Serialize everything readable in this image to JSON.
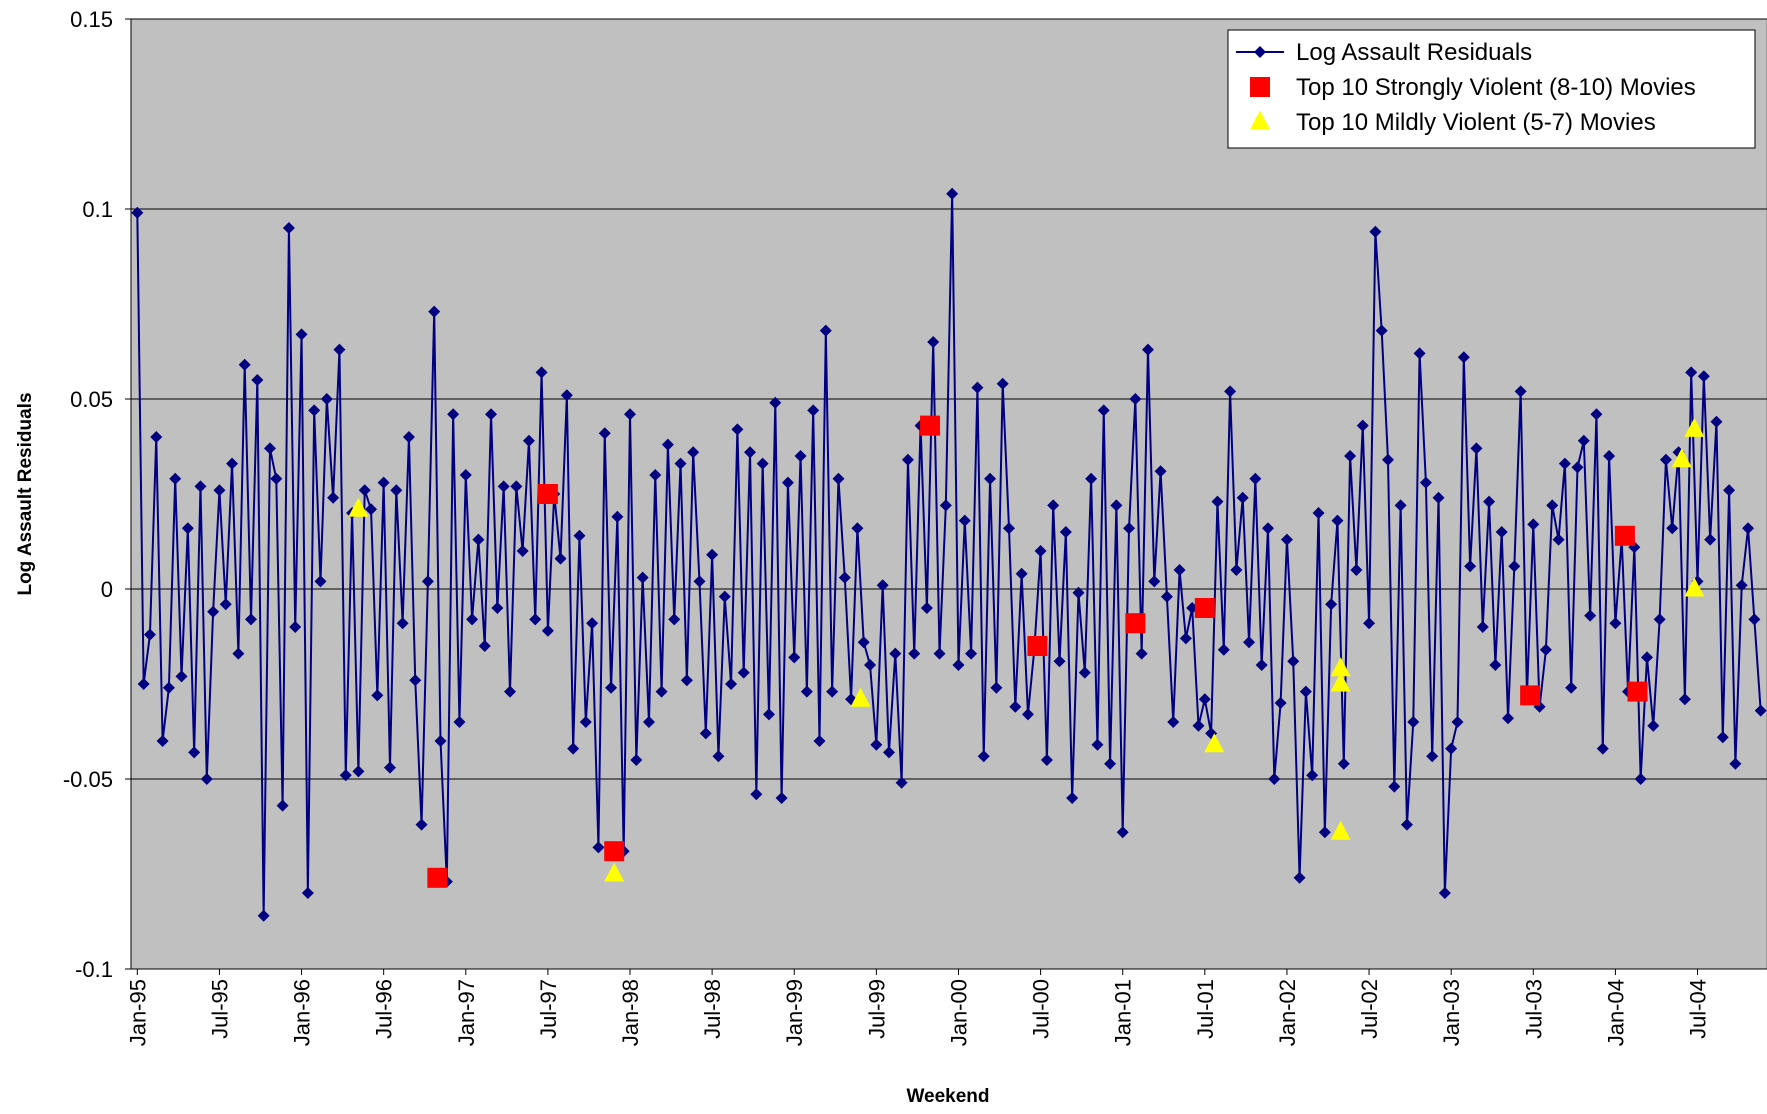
{
  "chart_data": {
    "type": "line",
    "x_label": "Weekend",
    "y_label": "Log Assault Residuals",
    "xlim": [
      0,
      518
    ],
    "ylim": [
      -0.1,
      0.15
    ],
    "yticks": [
      -0.1,
      -0.05,
      0,
      0.05,
      0.1,
      0.15
    ],
    "xticks": [
      {
        "value": 2,
        "label": "Jan-95"
      },
      {
        "value": 28,
        "label": "Jul-95"
      },
      {
        "value": 54,
        "label": "Jan-96"
      },
      {
        "value": 80,
        "label": "Jul-96"
      },
      {
        "value": 106,
        "label": "Jan-97"
      },
      {
        "value": 132,
        "label": "Jul-97"
      },
      {
        "value": 158,
        "label": "Jan-98"
      },
      {
        "value": 184,
        "label": "Jul-98"
      },
      {
        "value": 210,
        "label": "Jan-99"
      },
      {
        "value": 236,
        "label": "Jul-99"
      },
      {
        "value": 262,
        "label": "Jan-00"
      },
      {
        "value": 288,
        "label": "Jul-00"
      },
      {
        "value": 314,
        "label": "Jan-01"
      },
      {
        "value": 340,
        "label": "Jul-01"
      },
      {
        "value": 366,
        "label": "Jan-02"
      },
      {
        "value": 392,
        "label": "Jul-02"
      },
      {
        "value": 418,
        "label": "Jan-03"
      },
      {
        "value": 444,
        "label": "Jul-03"
      },
      {
        "value": 470,
        "label": "Jan-04"
      },
      {
        "value": 496,
        "label": "Jul-04"
      }
    ],
    "grid": true,
    "background": "#c0c0c0",
    "legend": "top-right",
    "series": [
      {
        "name": "Log Assault Residuals",
        "color": "#000080",
        "marker": "diamond",
        "line": true,
        "x": [
          2,
          4,
          6,
          8,
          10,
          12,
          14,
          16,
          18,
          20,
          22,
          24,
          26,
          28,
          30,
          32,
          34,
          36,
          38,
          40,
          42,
          44,
          46,
          48,
          50,
          52,
          54,
          56,
          58,
          60,
          62,
          64,
          66,
          68,
          70,
          72,
          74,
          76,
          78,
          80,
          82,
          84,
          86,
          88,
          90,
          92,
          94,
          96,
          98,
          100,
          102,
          104,
          106,
          108,
          110,
          112,
          114,
          116,
          118,
          120,
          122,
          124,
          126,
          128,
          130,
          132,
          134,
          136,
          138,
          140,
          142,
          144,
          146,
          148,
          150,
          152,
          154,
          156,
          158,
          160,
          162,
          164,
          166,
          168,
          170,
          172,
          174,
          176,
          178,
          180,
          182,
          184,
          186,
          188,
          190,
          192,
          194,
          196,
          198,
          200,
          202,
          204,
          206,
          208,
          210,
          212,
          214,
          216,
          218,
          220,
          222,
          224,
          226,
          228,
          230,
          232,
          234,
          236,
          238,
          240,
          242,
          244,
          246,
          248,
          250,
          252,
          254,
          256,
          258,
          260,
          262,
          264,
          266,
          268,
          270,
          272,
          274,
          276,
          278,
          280,
          282,
          284,
          286,
          288,
          290,
          292,
          294,
          296,
          298,
          300,
          302,
          304,
          306,
          308,
          310,
          312,
          314,
          316,
          318,
          320,
          322,
          324,
          326,
          328,
          330,
          332,
          334,
          336,
          338,
          340,
          342,
          344,
          346,
          348,
          350,
          352,
          354,
          356,
          358,
          360,
          362,
          364,
          366,
          368,
          370,
          372,
          374,
          376,
          378,
          380,
          382,
          384,
          386,
          388,
          390,
          392,
          394,
          396,
          398,
          400,
          402,
          404,
          406,
          408,
          410,
          412,
          414,
          416,
          418,
          420,
          422,
          424,
          426,
          428,
          430,
          432,
          434,
          436,
          438,
          440,
          442,
          444,
          446,
          448,
          450,
          452,
          454,
          456,
          458,
          460,
          462,
          464,
          466,
          468,
          470,
          472,
          474,
          476,
          478,
          480,
          482,
          484,
          486,
          488,
          490,
          492,
          494,
          496,
          498,
          500,
          502,
          504,
          506,
          508,
          510,
          512,
          514,
          516
        ],
        "values": [
          0.099,
          -0.025,
          -0.012,
          0.04,
          -0.04,
          -0.026,
          0.029,
          -0.023,
          0.016,
          -0.043,
          0.027,
          -0.05,
          -0.006,
          0.026,
          -0.004,
          0.033,
          -0.017,
          0.059,
          -0.008,
          0.055,
          -0.086,
          0.037,
          0.029,
          -0.057,
          0.095,
          -0.01,
          0.067,
          -0.08,
          0.047,
          0.002,
          0.05,
          0.024,
          0.063,
          -0.049,
          0.02,
          -0.048,
          0.026,
          0.021,
          -0.028,
          0.028,
          -0.047,
          0.026,
          -0.009,
          0.04,
          -0.024,
          -0.062,
          0.002,
          0.073,
          -0.04,
          -0.077,
          0.046,
          -0.035,
          0.03,
          -0.008,
          0.013,
          -0.015,
          0.046,
          -0.005,
          0.027,
          -0.027,
          0.027,
          0.01,
          0.039,
          -0.008,
          0.057,
          -0.011,
          0.025,
          0.008,
          0.051,
          -0.042,
          0.014,
          -0.035,
          -0.009,
          -0.068,
          0.041,
          -0.026,
          0.019,
          -0.069,
          0.046,
          -0.045,
          0.003,
          -0.035,
          0.03,
          -0.027,
          0.038,
          -0.008,
          0.033,
          -0.024,
          0.036,
          0.002,
          -0.038,
          0.009,
          -0.044,
          -0.002,
          -0.025,
          0.042,
          -0.022,
          0.036,
          -0.054,
          0.033,
          -0.033,
          0.049,
          -0.055,
          0.028,
          -0.018,
          0.035,
          -0.027,
          0.047,
          -0.04,
          0.068,
          -0.027,
          0.029,
          0.003,
          -0.029,
          0.016,
          -0.014,
          -0.02,
          -0.041,
          0.001,
          -0.043,
          -0.017,
          -0.051,
          0.034,
          -0.017,
          0.043,
          -0.005,
          0.065,
          -0.017,
          0.022,
          0.104,
          -0.02,
          0.018,
          -0.017,
          0.053,
          -0.044,
          0.029,
          -0.026,
          0.054,
          0.016,
          -0.031,
          0.004,
          -0.033,
          -0.016,
          0.01,
          -0.045,
          0.022,
          -0.019,
          0.015,
          -0.055,
          -0.001,
          -0.022,
          0.029,
          -0.041,
          0.047,
          -0.046,
          0.022,
          -0.064,
          0.016,
          0.05,
          -0.017,
          0.063,
          0.002,
          0.031,
          -0.002,
          -0.035,
          0.005,
          -0.013,
          -0.005,
          -0.036,
          -0.029,
          -0.038,
          0.023,
          -0.016,
          0.052,
          0.005,
          0.024,
          -0.014,
          0.029,
          -0.02,
          0.016,
          -0.05,
          -0.03,
          0.013,
          -0.019,
          -0.076,
          -0.027,
          -0.049,
          0.02,
          -0.064,
          -0.004,
          0.018,
          -0.046,
          0.035,
          0.005,
          0.043,
          -0.009,
          0.094,
          0.068,
          0.034,
          -0.052,
          0.022,
          -0.062,
          -0.035,
          0.062,
          0.028,
          -0.044,
          0.024,
          -0.08,
          -0.042,
          -0.035,
          0.061,
          0.006,
          0.037,
          -0.01,
          0.023,
          -0.02,
          0.015,
          -0.034,
          0.006,
          0.052,
          -0.028,
          0.017,
          -0.031,
          -0.016,
          0.022,
          0.013,
          0.033,
          -0.026,
          0.032,
          0.039,
          -0.007,
          0.046,
          -0.042,
          0.035,
          -0.009,
          0.013,
          -0.027,
          0.011,
          -0.05,
          -0.018,
          -0.036,
          -0.008,
          0.034,
          0.016,
          0.036,
          -0.029,
          0.057,
          0.002,
          0.056,
          0.013,
          0.044,
          -0.039,
          0.026,
          -0.046,
          0.001,
          0.016,
          -0.008,
          -0.032
        ]
      },
      {
        "name": "Top 10 Strongly Violent (8-10) Movies",
        "color": "#ff0000",
        "marker": "square",
        "line": false,
        "x": [
          97,
          132,
          153,
          253,
          287,
          318,
          340,
          443,
          473,
          477
        ],
        "values": [
          -0.076,
          0.025,
          -0.069,
          0.043,
          -0.015,
          -0.009,
          -0.005,
          -0.028,
          0.014,
          -0.027
        ]
      },
      {
        "name": "Top 10 Mildly Violent (5-7) Movies",
        "color": "#ffff00",
        "marker": "triangle",
        "line": false,
        "x": [
          72,
          153,
          231,
          343,
          383,
          383,
          383,
          491,
          495,
          495
        ],
        "values": [
          0.021,
          -0.075,
          -0.029,
          -0.041,
          -0.021,
          -0.025,
          -0.064,
          0.034,
          0.042,
          0.0
        ]
      }
    ]
  }
}
